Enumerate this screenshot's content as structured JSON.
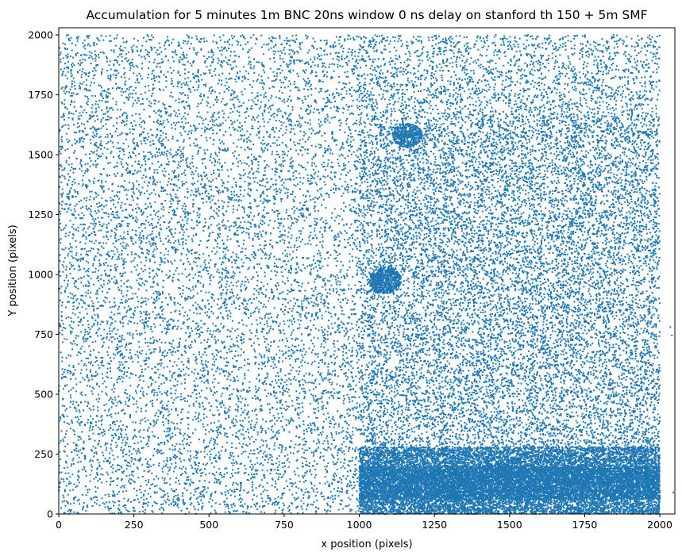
{
  "chart_data": {
    "type": "scatter",
    "title": "Accumulation for 5 minutes 1m BNC 20ns window 0 ns delay on stanford th 150 + 5m SMF",
    "xlabel": "x position (pixels)",
    "ylabel": "Y position (pixels)",
    "xlim": [
      0,
      2050
    ],
    "ylim": [
      0,
      2030
    ],
    "xticks": [
      0,
      250,
      500,
      750,
      1000,
      1250,
      1500,
      1750,
      2000
    ],
    "yticks": [
      0,
      250,
      500,
      750,
      1000,
      1250,
      1500,
      1750,
      2000
    ],
    "marker_color": "#1f77b4",
    "marker": "dot",
    "grid": false,
    "legend": "none",
    "points": {
      "description_of_distribution": null,
      "regions": [
        {
          "x": [
            0,
            1000
          ],
          "y": [
            0,
            2000
          ],
          "count": 9000,
          "kind": "uniform"
        },
        {
          "x": [
            1000,
            2000
          ],
          "y": [
            0,
            1660
          ],
          "count": 15000,
          "kind": "uniform"
        },
        {
          "x": [
            1000,
            2000
          ],
          "y": [
            1660,
            2000
          ],
          "count": 2000,
          "kind": "uniform"
        },
        {
          "x": [
            1000,
            2000
          ],
          "y": [
            0,
            280
          ],
          "count": 9000,
          "kind": "uniform"
        },
        {
          "x": [
            1000,
            2000
          ],
          "y": [
            60,
            200
          ],
          "count": 6000,
          "kind": "uniform"
        },
        {
          "cx": 1085,
          "cy": 975,
          "r": 55,
          "count": 600,
          "kind": "cluster"
        },
        {
          "cx": 1160,
          "cy": 1580,
          "r": 50,
          "count": 450,
          "kind": "cluster"
        }
      ],
      "outliers": [
        [
          2035,
          780
        ],
        [
          2040,
          745
        ],
        [
          2045,
          90
        ]
      ]
    }
  }
}
